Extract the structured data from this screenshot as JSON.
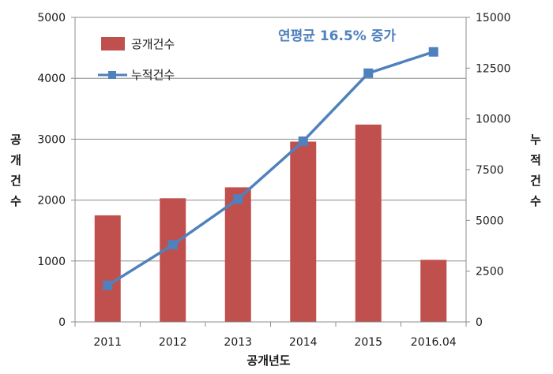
{
  "chart_data": {
    "type": "bar+line",
    "categories": [
      "2011",
      "2012",
      "2013",
      "2014",
      "2015",
      "2016.04"
    ],
    "series": [
      {
        "name": "공개건수",
        "type": "bar",
        "axis": "left",
        "color": "#c0504d",
        "values": [
          1750,
          2030,
          2210,
          2960,
          3240,
          1020
        ]
      },
      {
        "name": "누적건수",
        "type": "line",
        "axis": "right",
        "color": "#4f81bd",
        "marker": "square",
        "values": [
          1800,
          3800,
          6050,
          8900,
          12250,
          13300
        ]
      }
    ],
    "xlabel": "공개년도",
    "ylabel_left": "공개건수",
    "ylabel_right": "누적건수",
    "ylim_left": [
      0,
      5000
    ],
    "yticks_left": [
      "0",
      "1000",
      "2000",
      "3000",
      "4000",
      "5000"
    ],
    "ylim_right": [
      0,
      15000
    ],
    "yticks_right": [
      "0",
      "2500",
      "5000",
      "7500",
      "10000",
      "12500",
      "15000"
    ],
    "grid": true,
    "legend_position": "top-left",
    "annotation": "연평균 16.5% 증가"
  }
}
